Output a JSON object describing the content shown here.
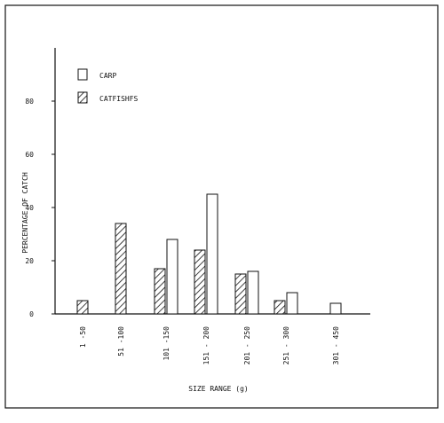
{
  "chart_data": {
    "type": "bar",
    "categories": [
      "1 -50",
      "51 -100",
      "101 -150",
      "151 - 200",
      "201 - 250",
      "251 - 300",
      "301 - 450"
    ],
    "series": [
      {
        "name": "CATFISHES",
        "pattern": "hatched",
        "values": [
          5,
          34,
          17,
          24,
          15,
          5,
          null
        ]
      },
      {
        "name": "CARP",
        "pattern": "open",
        "values": [
          null,
          null,
          28,
          45,
          16,
          8,
          4
        ]
      }
    ],
    "legend": [
      {
        "label": "CARP",
        "pattern": "open"
      },
      {
        "label": "CATFISHFS",
        "pattern": "hatched"
      }
    ],
    "legend_position": "top-left",
    "xlabel": "SIZE RANGE (g)",
    "ylabel": "PERCENTAGE OF CATCH",
    "ylim": [
      0,
      100
    ],
    "yticks": [
      0,
      20,
      40,
      60,
      80
    ],
    "grid": false,
    "ink_color": "#111111"
  }
}
